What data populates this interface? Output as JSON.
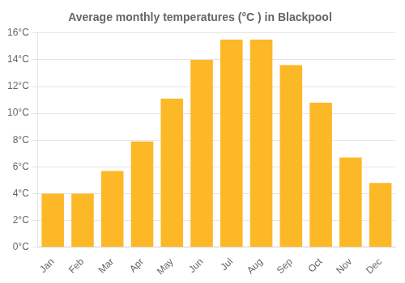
{
  "chart_data": {
    "type": "bar",
    "title": "Average monthly temperatures (°C ) in Blackpool",
    "categories": [
      "Jan",
      "Feb",
      "Mar",
      "Apr",
      "May",
      "Jun",
      "Jul",
      "Aug",
      "Sep",
      "Oct",
      "Nov",
      "Dec"
    ],
    "values": [
      4.0,
      4.0,
      5.7,
      7.9,
      11.1,
      14.0,
      15.5,
      15.5,
      13.6,
      10.8,
      6.7,
      4.8
    ],
    "color": "#FDB827",
    "ylim": [
      0,
      16
    ],
    "yticks": [
      {
        "value": 0,
        "label": "0°C"
      },
      {
        "value": 2,
        "label": "2°C"
      },
      {
        "value": 4,
        "label": "4°C"
      },
      {
        "value": 6,
        "label": "6°C"
      },
      {
        "value": 8,
        "label": "8°C"
      },
      {
        "value": 10,
        "label": "10°C"
      },
      {
        "value": 12,
        "label": "12°C"
      },
      {
        "value": 14,
        "label": "14°C"
      },
      {
        "value": 16,
        "label": "16°C"
      }
    ],
    "grid": true
  }
}
